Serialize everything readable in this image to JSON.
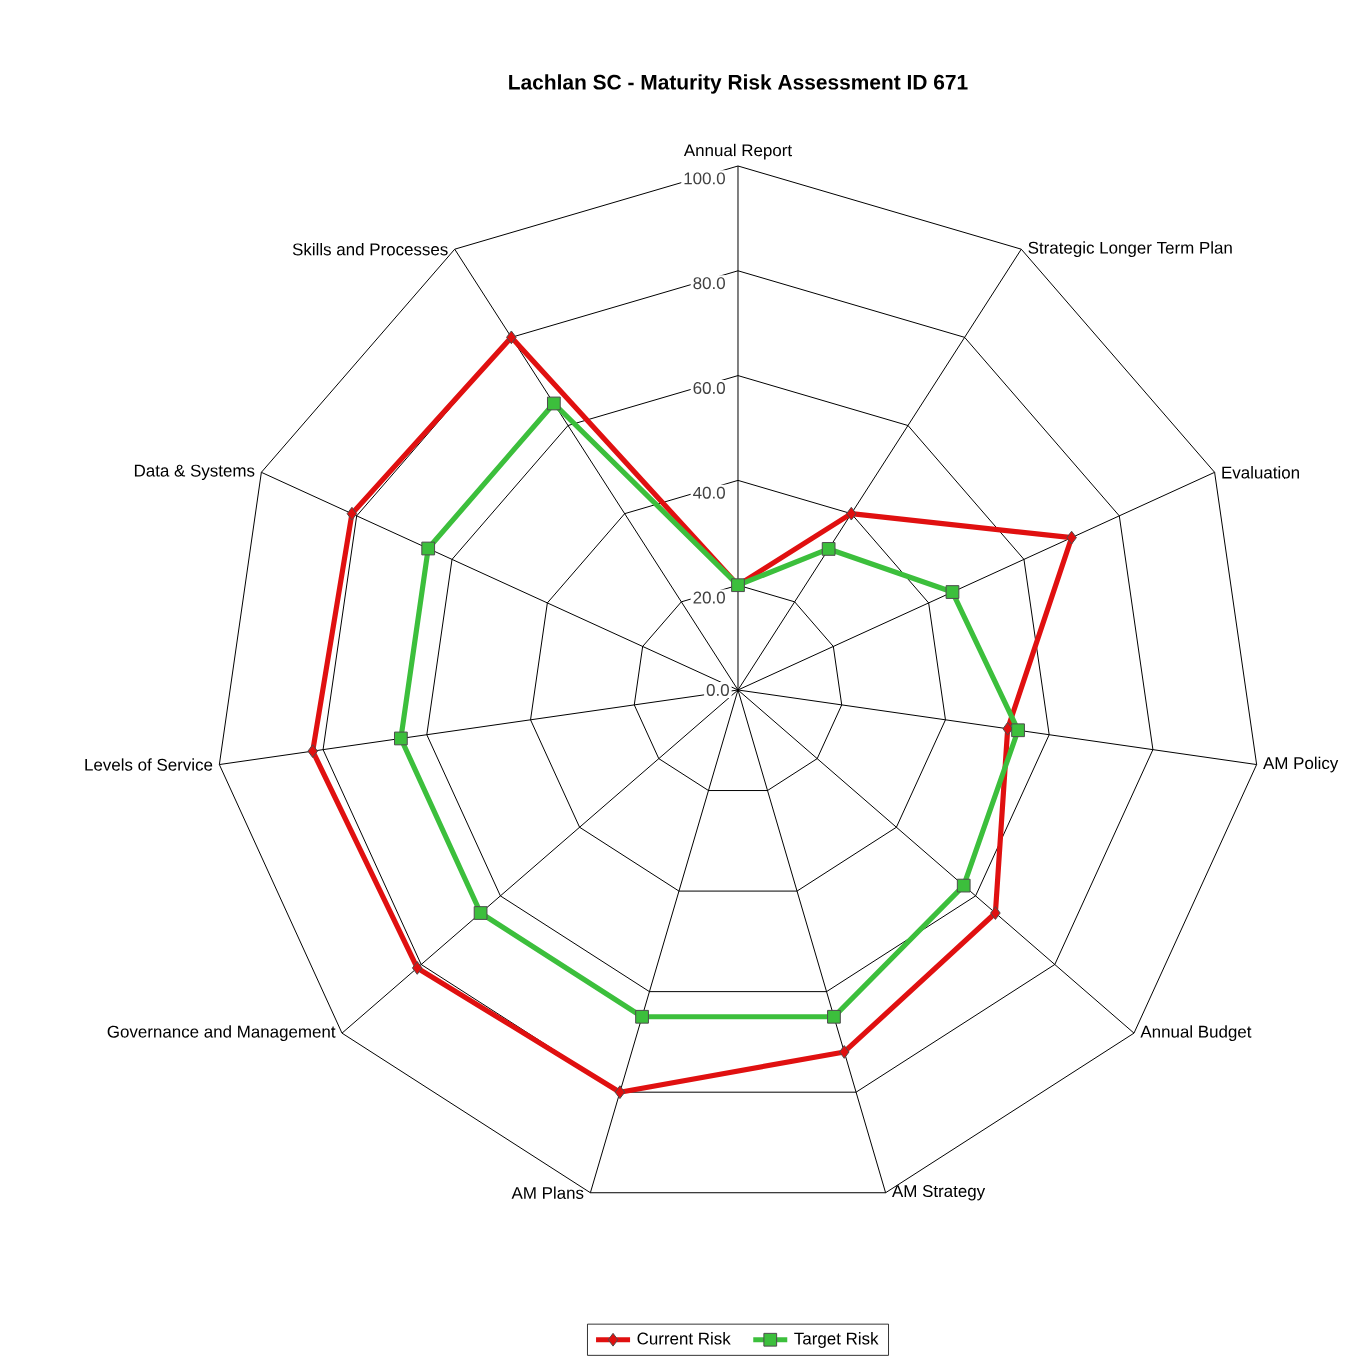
{
  "chart_data": {
    "type": "radar",
    "title": "Lachlan SC - Maturity Risk Assessment ID 671",
    "categories": [
      "Annual Report",
      "Strategic Longer Term Plan",
      "Evaluation",
      "AM Policy",
      "Annual Budget",
      "AM Strategy",
      "AM Plans",
      "Governance and Management",
      "Levels of Service",
      "Data & Systems",
      "Skills and Processes"
    ],
    "ylim": [
      0,
      100
    ],
    "yticks": [
      {
        "value": 0,
        "label": "0.0"
      },
      {
        "value": 20,
        "label": "20.0"
      },
      {
        "value": 40,
        "label": "40.0"
      },
      {
        "value": 60,
        "label": "60.0"
      },
      {
        "value": 80,
        "label": "80.0"
      },
      {
        "value": 100,
        "label": "100.0"
      }
    ],
    "grid": true,
    "legend": "bottom",
    "series": [
      {
        "name": "Current Risk",
        "color": "#e01010",
        "marker": "diamond",
        "values": [
          20,
          40,
          70,
          52,
          65,
          72,
          80,
          81,
          82,
          81,
          80
        ]
      },
      {
        "name": "Target Risk",
        "color": "#3cbf3c",
        "marker": "square",
        "values": [
          20,
          32,
          45,
          54,
          57,
          65,
          65,
          65,
          65,
          65,
          65
        ]
      }
    ]
  }
}
